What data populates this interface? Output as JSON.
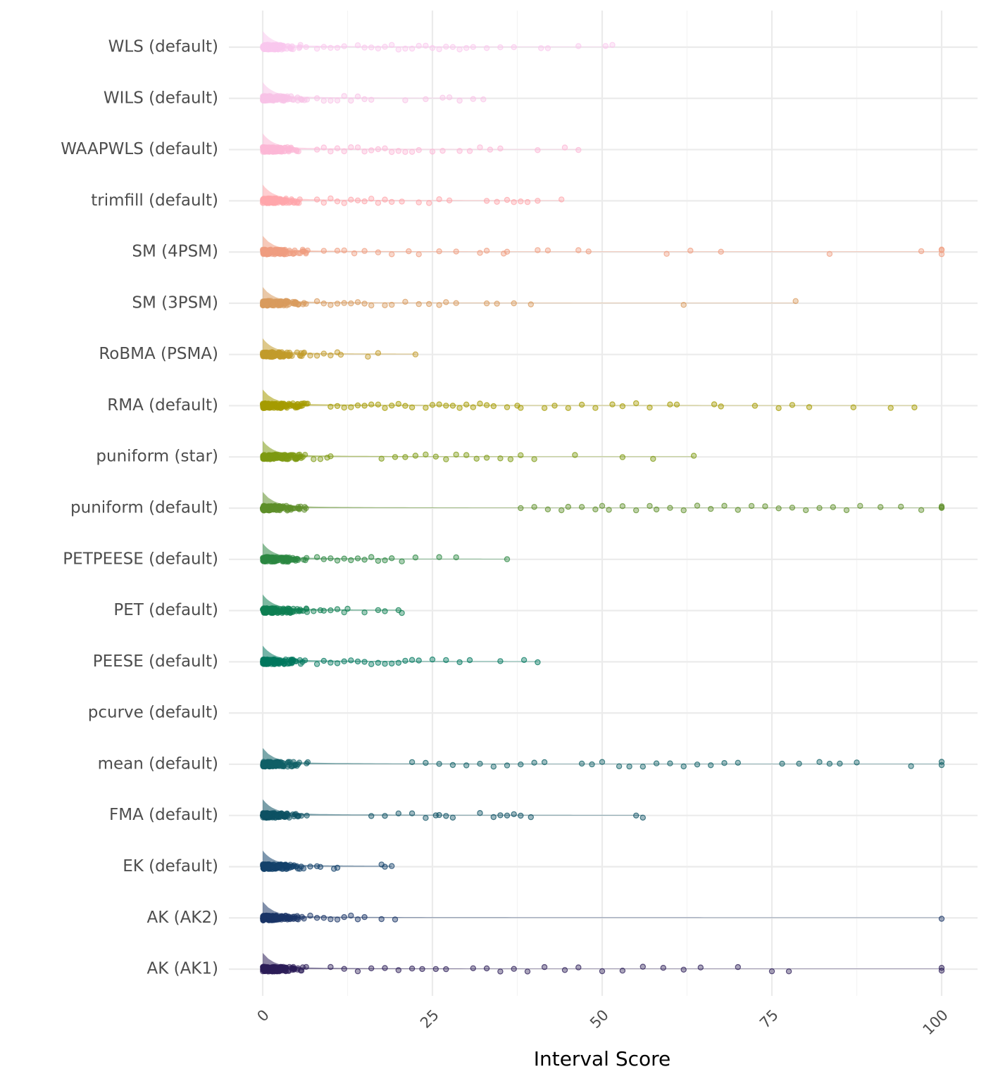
{
  "chart_data": {
    "type": "scatter",
    "subtype": "raincloud (half-density + jittered points) per method",
    "title": "",
    "xlabel": "Interval Score",
    "ylabel": "",
    "xlim": [
      0,
      100
    ],
    "xticks": [
      0,
      25,
      50,
      75,
      100
    ],
    "xtick_labels": [
      "0",
      "25",
      "50",
      "75",
      "100"
    ],
    "grid": true,
    "legend": "none",
    "series": [
      {
        "name": "WLS (default)",
        "color": "#f9c8ee",
        "outliers": [
          8,
          9,
          10,
          11,
          12,
          14,
          15,
          16,
          17,
          18,
          19,
          20,
          21,
          22,
          23,
          24,
          25,
          26,
          27,
          28,
          29,
          30,
          31,
          33,
          35,
          37,
          41,
          42,
          46.5,
          50.5,
          51.5
        ]
      },
      {
        "name": "WILS (default)",
        "color": "#f8c3e7",
        "outliers": [
          8,
          9,
          10,
          11,
          12,
          13,
          14,
          15,
          16,
          21,
          24,
          26.5,
          27.5,
          29,
          31,
          32.5
        ]
      },
      {
        "name": "WAAPWLS (default)",
        "color": "#fcb7d6",
        "outliers": [
          8,
          9,
          10,
          11,
          12,
          13,
          14,
          15,
          16,
          17,
          18,
          19,
          20,
          21,
          22,
          23,
          25,
          26.5,
          29,
          30.5,
          32,
          33.5,
          35,
          40.5,
          44.5,
          46.5
        ]
      },
      {
        "name": "trimfill (default)",
        "color": "#ffa6ab",
        "outliers": [
          8,
          9,
          10,
          11,
          12,
          13,
          14,
          15,
          16,
          17,
          18,
          19,
          20.5,
          23,
          24.5,
          26,
          27.5,
          33,
          34.5,
          36,
          37,
          38,
          39,
          40.5,
          44
        ]
      },
      {
        "name": "SM (4PSM)",
        "color": "#f09d80",
        "outliers": [
          9,
          11,
          12,
          13.5,
          15,
          17,
          19,
          21.5,
          23,
          26,
          28.5,
          32,
          33,
          35.5,
          36,
          40.5,
          42,
          46.5,
          48,
          59.5,
          63,
          67.5,
          83.5,
          97,
          100,
          100,
          100
        ]
      },
      {
        "name": "SM (3PSM)",
        "color": "#d99b5e",
        "outliers": [
          8,
          9,
          10,
          11,
          12,
          13,
          14,
          15,
          16,
          18,
          19,
          21,
          23,
          24.5,
          26,
          27,
          28.5,
          33,
          34.5,
          37,
          39.5,
          62,
          78.5
        ]
      },
      {
        "name": "RoBMA (PSMA)",
        "color": "#c29b2b",
        "outliers": [
          7,
          8,
          9,
          10,
          11,
          11.5,
          15.5,
          17,
          22.5
        ]
      },
      {
        "name": "RMA (default)",
        "color": "#a59b00",
        "outliers": [
          10,
          11,
          12,
          13,
          14,
          15,
          16,
          17,
          18,
          19,
          20,
          21,
          22,
          24,
          25,
          26,
          27,
          28,
          29,
          30,
          31,
          32,
          33,
          34,
          36,
          37.5,
          38,
          41.5,
          43,
          45,
          47,
          49,
          51.5,
          53,
          55,
          57,
          60,
          61,
          66.5,
          67.5,
          72.5,
          76,
          78,
          80.5,
          87,
          92.5,
          96
        ]
      },
      {
        "name": "puniform (star)",
        "color": "#7e9a12",
        "outliers": [
          7.5,
          8.5,
          9.5,
          10,
          17.5,
          19.5,
          21,
          22.5,
          24,
          25.5,
          27,
          28.5,
          30,
          31.5,
          33,
          35,
          36.5,
          38,
          40,
          46,
          53,
          57.5,
          63.5
        ]
      },
      {
        "name": "puniform (default)",
        "color": "#5e8f29",
        "outliers": [
          38,
          40,
          42,
          44,
          45,
          47,
          49,
          50,
          51,
          53,
          55,
          57,
          58,
          60,
          62,
          64,
          66,
          68,
          70,
          72,
          74,
          76,
          78,
          80,
          82,
          84,
          86,
          88,
          91,
          94,
          97,
          100,
          100,
          100
        ]
      },
      {
        "name": "PETPEESE (default)",
        "color": "#2b8742",
        "outliers": [
          8,
          9,
          10,
          11,
          12,
          13,
          14,
          15,
          16,
          17,
          18,
          19,
          20.5,
          22.5,
          26,
          28.5,
          36
        ]
      },
      {
        "name": "PET (default)",
        "color": "#0e7f52",
        "outliers": [
          7.5,
          8.5,
          9,
          10,
          11,
          12,
          12.5,
          15,
          17,
          18,
          20,
          20.5
        ]
      },
      {
        "name": "PEESE (default)",
        "color": "#00775e",
        "outliers": [
          8,
          9,
          10,
          11,
          12,
          13,
          14,
          15,
          16,
          17,
          18,
          19,
          20,
          21,
          22,
          23,
          25,
          27,
          29,
          30.5,
          35,
          38.5,
          40.5
        ]
      },
      {
        "name": "pcurve (default)",
        "color": "#0b6b66",
        "outliers": []
      },
      {
        "name": "mean (default)",
        "color": "#0f6066",
        "outliers": [
          22,
          24,
          26,
          28,
          30,
          32,
          34,
          36,
          38,
          40,
          41.5,
          47,
          48.5,
          50,
          52.5,
          54,
          56,
          58,
          60,
          62,
          64,
          66,
          68,
          70,
          76.5,
          79,
          82,
          83.5,
          85,
          87.5,
          95.5,
          100,
          100
        ]
      },
      {
        "name": "FMA (default)",
        "color": "#0d5163",
        "outliers": [
          16,
          18,
          20,
          22,
          24,
          25.5,
          26,
          27,
          28,
          32,
          34,
          35,
          36,
          37,
          38,
          39.5,
          55,
          56
        ]
      },
      {
        "name": "EK (default)",
        "color": "#13426b",
        "outliers": [
          7,
          8,
          8.5,
          10.5,
          11,
          17.5,
          18,
          19
        ]
      },
      {
        "name": "AK (AK2)",
        "color": "#1a3466",
        "outliers": [
          7,
          8,
          9,
          10,
          11,
          12,
          13,
          14,
          15,
          17.5,
          19.5,
          100
        ]
      },
      {
        "name": "AK (AK1)",
        "color": "#2c1d58",
        "outliers": [
          10,
          12,
          14,
          16,
          18,
          20,
          22,
          23.5,
          25.5,
          27,
          31,
          33,
          35,
          37,
          39,
          41.5,
          44.5,
          46.5,
          50,
          53,
          56,
          59,
          62,
          64.5,
          70,
          75,
          77.5,
          100,
          100
        ]
      }
    ]
  }
}
